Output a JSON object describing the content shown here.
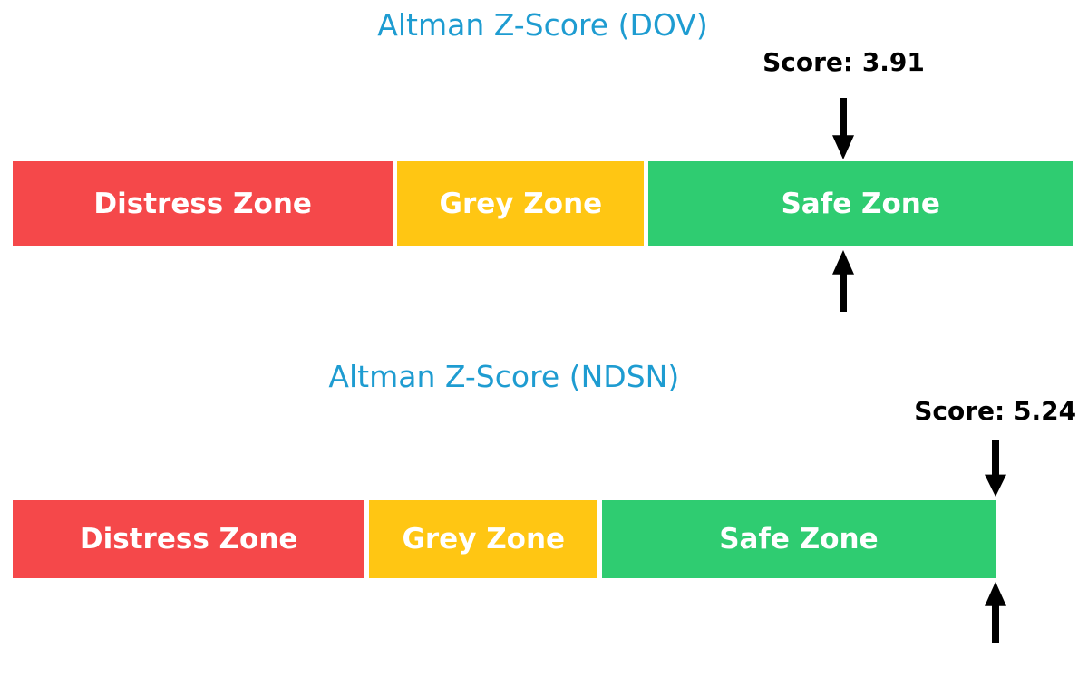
{
  "colors": {
    "page_bg": "#FFFFFF",
    "title_blue": "#1E9CD1",
    "distress_red": "#F5484A",
    "grey_yellow": "#FFC613",
    "safe_green": "#2FCC71",
    "arrow_black": "#000000",
    "zone_text": "#FFFFFF",
    "score_text": "#000000"
  },
  "chart_data": [
    {
      "type": "bar",
      "title": "Altman Z-Score (DOV)",
      "ticker": "DOV",
      "score": 3.91,
      "score_label": "Score: 3.91",
      "zones": [
        {
          "label": "Distress Zone",
          "color": "#F5484A",
          "width_frac": 0.363
        },
        {
          "label": "Grey Zone",
          "color": "#FFC613",
          "width_frac": 0.237
        },
        {
          "label": "Safe Zone",
          "color": "#2FCC71",
          "width_frac": 0.4
        }
      ],
      "bar_width_frac": 1.0,
      "marker_frac": 0.784,
      "legend": "none",
      "grid": false
    },
    {
      "type": "bar",
      "title": "Altman Z-Score (NDSN)",
      "ticker": "NDSN",
      "score": 5.24,
      "score_label": "Score: 5.24",
      "zones": [
        {
          "label": "Distress Zone",
          "color": "#F5484A",
          "width_frac": 0.363
        },
        {
          "label": "Grey Zone",
          "color": "#FFC613",
          "width_frac": 0.237
        },
        {
          "label": "Safe Zone",
          "color": "#2FCC71",
          "width_frac": 0.4
        }
      ],
      "bar_width_frac": 0.927,
      "marker_frac": 1.0,
      "legend": "none",
      "grid": false
    }
  ]
}
